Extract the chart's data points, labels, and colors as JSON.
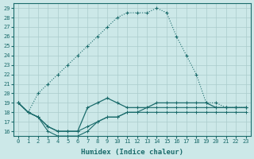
{
  "xlabel": "Humidex (Indice chaleur)",
  "ylabel": "",
  "xlim": [
    -0.5,
    23.5
  ],
  "ylim": [
    15.5,
    29.5
  ],
  "yticks": [
    16,
    17,
    18,
    19,
    20,
    21,
    22,
    23,
    24,
    25,
    26,
    27,
    28,
    29
  ],
  "xticks": [
    0,
    1,
    2,
    3,
    4,
    5,
    6,
    7,
    8,
    9,
    10,
    11,
    12,
    13,
    14,
    15,
    16,
    17,
    18,
    19,
    20,
    21,
    22,
    23
  ],
  "background_color": "#cce8e8",
  "grid_color": "#aacccc",
  "line_color": "#1a6b6b",
  "line1_x": [
    0,
    1,
    2,
    3,
    4,
    5,
    6,
    7,
    8,
    9,
    10,
    11,
    12,
    13,
    14,
    15,
    16,
    17,
    18,
    19,
    20,
    21,
    22,
    23
  ],
  "line1_y": [
    19,
    18,
    20,
    21,
    22,
    23,
    24,
    25,
    26,
    27,
    28,
    28.5,
    28.5,
    28.5,
    29,
    28.5,
    26,
    24,
    22,
    19,
    19,
    18.5,
    18.5,
    18.5
  ],
  "line2_x": [
    0,
    1,
    2,
    3,
    4,
    5,
    6,
    7,
    8,
    9,
    10,
    11,
    12,
    13,
    14,
    15,
    16,
    17,
    18,
    19,
    20,
    21,
    22,
    23
  ],
  "line2_y": [
    19,
    18,
    17.5,
    16.5,
    16,
    16,
    16,
    18.5,
    19,
    19.5,
    19,
    18.5,
    18.5,
    18.5,
    19,
    19,
    19,
    19,
    19,
    19,
    18.5,
    18.5,
    18.5,
    18.5
  ],
  "line3_x": [
    0,
    1,
    2,
    3,
    4,
    5,
    6,
    7,
    8,
    9,
    10,
    11,
    12,
    13,
    14,
    15,
    16,
    17,
    18,
    19,
    20,
    21,
    22,
    23
  ],
  "line3_y": [
    19,
    18,
    17.5,
    16.5,
    16,
    16,
    16,
    16.5,
    17,
    17.5,
    17.5,
    18,
    18,
    18.5,
    18.5,
    18.5,
    18.5,
    18.5,
    18.5,
    18.5,
    18.5,
    18.5,
    18.5,
    18.5
  ],
  "line4_x": [
    0,
    1,
    2,
    3,
    4,
    5,
    6,
    7,
    8,
    9,
    10,
    11,
    12,
    13,
    14,
    15,
    16,
    17,
    18,
    19,
    20,
    21,
    22,
    23
  ],
  "line4_y": [
    19,
    18,
    17.5,
    16,
    15.5,
    15.5,
    15.5,
    16,
    17,
    17.5,
    17.5,
    18,
    18,
    18,
    18,
    18,
    18,
    18,
    18,
    18,
    18,
    18,
    18,
    18
  ]
}
